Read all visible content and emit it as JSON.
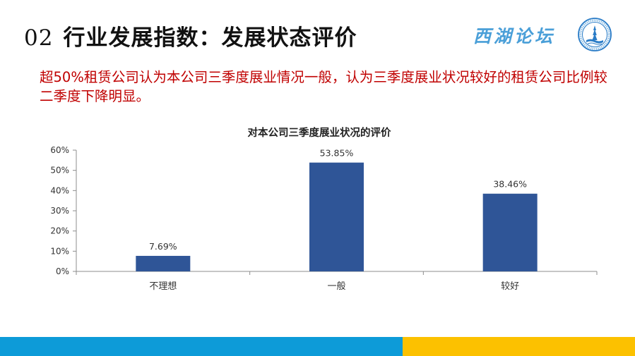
{
  "header": {
    "section_number": "02",
    "title": "行业发展指数：发展状态评价",
    "forum_name": "西湖论坛"
  },
  "summary": "超50%租赁公司认为本公司三季度展业情况一般，认为三季度展业状况较好的租赁公司比例较二季度下降明显。",
  "colors": {
    "bar": "#2f5597",
    "summary_text": "#c00000",
    "footer_blue": "#0d9bd8",
    "footer_yellow": "#fcc100"
  },
  "chart_data": {
    "type": "bar",
    "title": "对本公司三季度展业状况的评价",
    "categories": [
      "不理想",
      "一般",
      "较好"
    ],
    "values": [
      7.69,
      53.85,
      38.46
    ],
    "data_labels": [
      "7.69%",
      "53.85%",
      "38.46%"
    ],
    "ylim": [
      0,
      60
    ],
    "yticks": [
      0,
      10,
      20,
      30,
      40,
      50,
      60
    ],
    "ytick_labels": [
      "0%",
      "10%",
      "20%",
      "30%",
      "40%",
      "50%",
      "60%"
    ],
    "grid": false,
    "legend": "none",
    "xlabel": "",
    "ylabel": ""
  }
}
